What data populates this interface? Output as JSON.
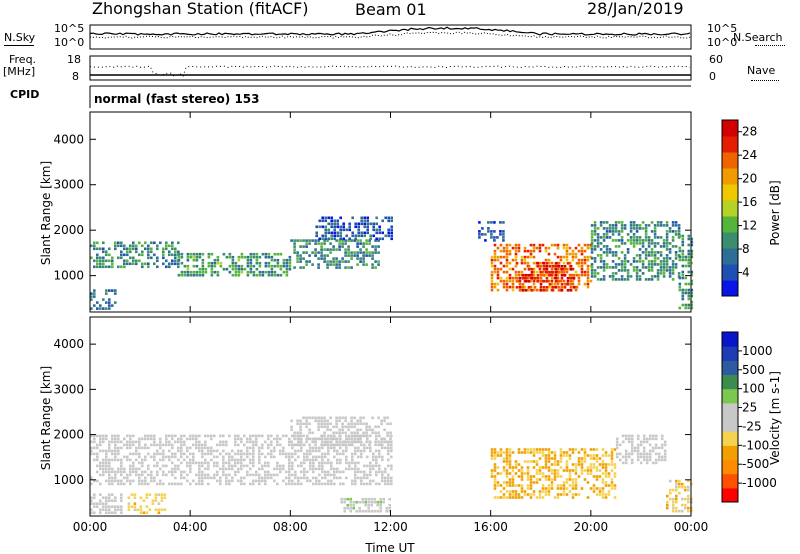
{
  "header": {
    "title": "Zhongshan Station (fitACF)",
    "beam": "Beam 01",
    "date": "28/Jan/2019"
  },
  "panels": {
    "nsky_label": "N.Sky",
    "nsky_ticks": [
      "10^5",
      "10^0"
    ],
    "nsearch_label": "N.Search",
    "nsearch_ticks": [
      "10^5",
      "10^0"
    ],
    "freq_label_1": "Freq.",
    "freq_label_2": "[MHz]",
    "freq_ticks": [
      "18",
      "8"
    ],
    "nave_label": "Nave",
    "nave_ticks": [
      "60",
      "0"
    ],
    "cpid_label": "CPID",
    "cpid_value": "normal (fast stereo) 153"
  },
  "colors": {
    "power_scale": [
      "#0a14e6",
      "#1e50b4",
      "#2d6e96",
      "#3c8c6e",
      "#55b43c",
      "#b4d228",
      "#f0c800",
      "#f09b00",
      "#f06400",
      "#e61e00",
      "#d20000"
    ],
    "velocity_scale": [
      "#ff0000",
      "#ff5000",
      "#ff8c00",
      "#f0a000",
      "#f5d250",
      "#c8c8c8",
      "#c8c8c8",
      "#7bc850",
      "#3c8c50",
      "#2d5aa0",
      "#1e3cb4",
      "#0a14c8"
    ],
    "ground_scatter": "#c8c8c8"
  },
  "chart_data": [
    {
      "type": "heatmap",
      "name": "power",
      "xlabel": "",
      "ylabel": "Slant Range [km]",
      "x_ticks": [
        "00:00",
        "04:00",
        "08:00",
        "12:00",
        "16:00",
        "20:00",
        "00:00"
      ],
      "y_ticks": [
        "1000",
        "2000",
        "3000",
        "4000"
      ],
      "ylim": [
        200,
        4600
      ],
      "colorbar_label": "Power [dB]",
      "colorbar_ticks": [
        "4",
        "8",
        "12",
        "16",
        "20",
        "24",
        "28"
      ],
      "clim": [
        0,
        30
      ],
      "regions": [
        {
          "t": [
            0.0,
            3.5
          ],
          "r": [
            1200,
            1750
          ],
          "v": 9
        },
        {
          "t": [
            3.5,
            8.0
          ],
          "r": [
            1000,
            1500
          ],
          "v": 10
        },
        {
          "t": [
            8.0,
            11.5
          ],
          "r": [
            1200,
            1800
          ],
          "v": 9
        },
        {
          "t": [
            0.0,
            1.0
          ],
          "r": [
            300,
            700
          ],
          "v": 6
        },
        {
          "t": [
            9.0,
            12.0
          ],
          "r": [
            1800,
            2300
          ],
          "v": 5
        },
        {
          "t": [
            15.5,
            16.5
          ],
          "r": [
            1800,
            2200
          ],
          "v": 5
        },
        {
          "t": [
            16.0,
            20.0
          ],
          "r": [
            700,
            1700
          ],
          "v": 22
        },
        {
          "t": [
            17.0,
            19.5
          ],
          "r": [
            700,
            1300
          ],
          "v": 26
        },
        {
          "t": [
            20.0,
            23.5
          ],
          "r": [
            900,
            2200
          ],
          "v": 9
        },
        {
          "t": [
            23.5,
            24.0
          ],
          "r": [
            300,
            1900
          ],
          "v": 10
        }
      ]
    },
    {
      "type": "heatmap",
      "name": "velocity",
      "xlabel": "Time UT",
      "ylabel": "Slant Range [km]",
      "x_ticks": [
        "00:00",
        "04:00",
        "08:00",
        "12:00",
        "16:00",
        "20:00",
        "00:00"
      ],
      "y_ticks": [
        "1000",
        "2000",
        "3000",
        "4000"
      ],
      "ylim": [
        200,
        4600
      ],
      "colorbar_label": "Velocity [m s-1]",
      "colorbar_ticks": [
        "-1000",
        "-500",
        "-100",
        "-25",
        "25",
        "100",
        "500",
        "1000"
      ],
      "clim": [
        -1200,
        1200
      ],
      "regions": [
        {
          "t": [
            0.0,
            12.0
          ],
          "r": [
            900,
            2000
          ],
          "v": 0
        },
        {
          "t": [
            8.0,
            12.0
          ],
          "r": [
            1800,
            2400
          ],
          "v": 0
        },
        {
          "t": [
            0.0,
            1.2
          ],
          "r": [
            300,
            700
          ],
          "v": 120
        },
        {
          "t": [
            1.5,
            3.0
          ],
          "r": [
            300,
            700
          ],
          "v": -300
        },
        {
          "t": [
            10.0,
            12.0
          ],
          "r": [
            300,
            600
          ],
          "v": 150
        },
        {
          "t": [
            16.0,
            21.0
          ],
          "r": [
            600,
            1700
          ],
          "v": -400
        },
        {
          "t": [
            21.0,
            23.0
          ],
          "r": [
            1400,
            2000
          ],
          "v": 0
        },
        {
          "t": [
            23.0,
            24.0
          ],
          "r": [
            300,
            1000
          ],
          "v": -300
        }
      ]
    }
  ]
}
